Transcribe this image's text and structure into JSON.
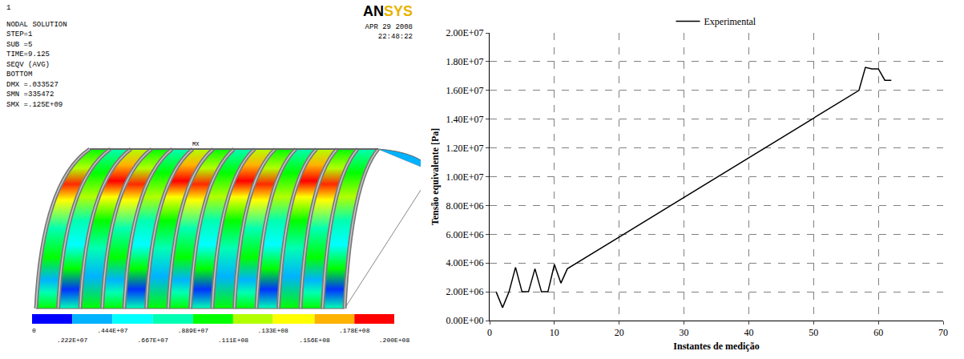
{
  "chart_data": {
    "type": "line",
    "x": [
      1,
      2,
      3,
      4,
      5,
      6,
      7,
      8,
      9,
      10,
      11,
      12,
      57,
      58,
      59,
      60,
      61,
      62
    ],
    "series": [
      {
        "name": "Experimental",
        "color": "#000000",
        "values": [
          2000000,
          900000,
          2000000,
          3700000,
          2000000,
          2000000,
          3600000,
          2000000,
          2000000,
          3900000,
          2600000,
          3600000,
          16000000,
          17600000,
          17500000,
          17500000,
          16700000,
          16700000
        ]
      }
    ],
    "x_label": "Instantes de medição",
    "y_label": "Tensão equivalente [Pa]",
    "xlim": [
      0,
      70
    ],
    "xticks": [
      0,
      10,
      20,
      30,
      40,
      50,
      60,
      70
    ],
    "ylim": [
      0,
      20000000
    ],
    "yticks": [
      {
        "value": 0,
        "label": "0.00E+00"
      },
      {
        "value": 2000000,
        "label": "2.00E+06"
      },
      {
        "value": 4000000,
        "label": "4.00E+06"
      },
      {
        "value": 6000000,
        "label": "6.00E+06"
      },
      {
        "value": 8000000,
        "label": "8.00E+06"
      },
      {
        "value": 10000000,
        "label": "1.00E+07"
      },
      {
        "value": 12000000,
        "label": "1.20E+07"
      },
      {
        "value": 14000000,
        "label": "1.40E+07"
      },
      {
        "value": 16000000,
        "label": "1.60E+07"
      },
      {
        "value": 18000000,
        "label": "1.80E+07"
      },
      {
        "value": 20000000,
        "label": "2.00E+07"
      }
    ],
    "grid": true,
    "legend": "top"
  },
  "contour_plot": {
    "header": [
      "1",
      "NODAL SOLUTION",
      "STEP=1",
      "SUB =5",
      "TIME=9.125",
      "SEQV     (AVG)",
      "BOTTOM",
      "DMX =.033527",
      "SMN =335472",
      "SMX =.125E+09"
    ],
    "logo": "ANSYS",
    "date": "APR 29 2008",
    "time": "22:48:22",
    "max_label": "MX",
    "colorbar": {
      "range": [
        0,
        20000000
      ],
      "ticks": [
        {
          "value": 0,
          "label": "0"
        },
        {
          "value": 2220000,
          "label": ".222E+07"
        },
        {
          "value": 4440000,
          "label": ".444E+07"
        },
        {
          "value": 6670000,
          "label": ".667E+07"
        },
        {
          "value": 8890000,
          "label": ".889E+07"
        },
        {
          "value": 11100000,
          "label": ".111E+08"
        },
        {
          "value": 13300000,
          "label": ".133E+08"
        },
        {
          "value": 15600000,
          "label": ".156E+08"
        },
        {
          "value": 17800000,
          "label": ".178E+08"
        },
        {
          "value": 20000000,
          "label": ".200E+08"
        }
      ]
    }
  }
}
